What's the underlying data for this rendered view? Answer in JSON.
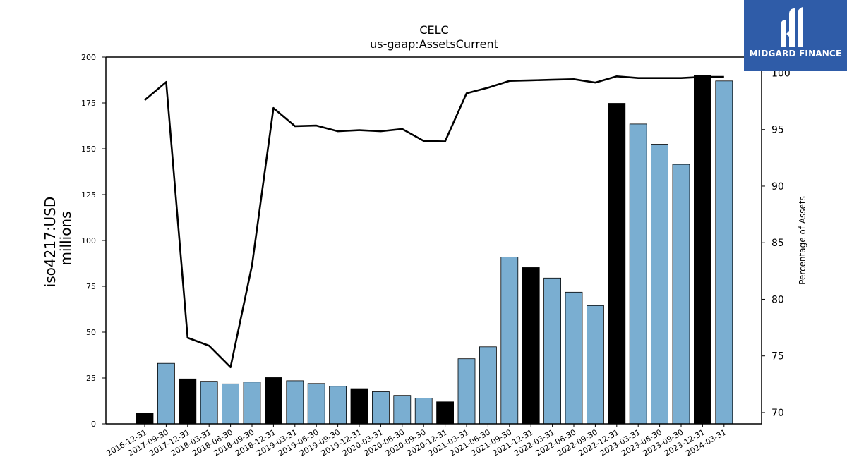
{
  "chart_data": {
    "type": "bar",
    "title": "CELC",
    "subtitle": "us-gaap:AssetsCurrent",
    "ylabel_line1": "iso4217:USD",
    "ylabel_line2": "millions",
    "y2label": "Percentage of Assets",
    "ylim": [
      0,
      200
    ],
    "y2lim": [
      69,
      101.4
    ],
    "yticks": [
      0,
      25,
      50,
      75,
      100,
      125,
      150,
      175,
      200
    ],
    "y2ticks": [
      70,
      75,
      80,
      85,
      90,
      95,
      100
    ],
    "categories": [
      "2016-12-31",
      "2017-09-30",
      "2017-12-31",
      "2018-03-31",
      "2018-06-30",
      "2018-09-30",
      "2018-12-31",
      "2019-03-31",
      "2019-06-30",
      "2019-09-30",
      "2019-12-31",
      "2020-03-31",
      "2020-06-30",
      "2020-09-30",
      "2020-12-31",
      "2021-03-31",
      "2021-06-30",
      "2021-09-30",
      "2021-12-31",
      "2022-03-31",
      "2022-06-30",
      "2022-09-30",
      "2022-12-31",
      "2023-03-31",
      "2023-06-30",
      "2023-09-30",
      "2023-12-31",
      "2024-03-31"
    ],
    "series": [
      {
        "type": "bar",
        "values": [
          6.0,
          33.0,
          24.5,
          23.2,
          21.8,
          22.8,
          25.2,
          23.5,
          22.0,
          20.5,
          19.2,
          17.5,
          15.5,
          14.0,
          12.0,
          35.5,
          42.0,
          91.0,
          85.2,
          79.5,
          71.8,
          64.5,
          174.8,
          163.5,
          152.5,
          141.5,
          190.0,
          187.0
        ],
        "year_end": [
          true,
          false,
          true,
          false,
          false,
          false,
          true,
          false,
          false,
          false,
          true,
          false,
          false,
          false,
          true,
          false,
          false,
          false,
          true,
          false,
          false,
          false,
          true,
          false,
          false,
          false,
          true,
          false
        ]
      },
      {
        "type": "line",
        "axis": "right",
        "values": [
          97.6,
          99.2,
          76.6,
          75.9,
          74.0,
          83.0,
          96.9,
          95.3,
          95.35,
          94.85,
          94.95,
          94.85,
          95.05,
          94.0,
          93.95,
          98.2,
          98.7,
          99.3,
          99.35,
          99.4,
          99.45,
          99.15,
          99.7,
          99.55,
          99.55,
          99.55,
          99.65,
          99.65
        ]
      }
    ],
    "colors": {
      "year_end_bar": "#000000",
      "other_bar": "#7aaed1",
      "bar_edge": "#000000",
      "line": "#000000"
    }
  },
  "logo": {
    "text": "MIDGARD FINANCE",
    "color": "#2f5ca8"
  }
}
